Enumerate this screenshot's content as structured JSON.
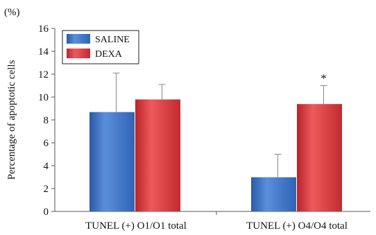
{
  "chart_data": {
    "type": "bar",
    "unit_label": "(%)",
    "ylabel": "Percentage of apoptotic cells",
    "xlabel": "",
    "ylim": [
      0,
      16
    ],
    "yticks": [
      "0",
      "2",
      "4",
      "6",
      "8",
      "10",
      "12",
      "14",
      "16"
    ],
    "categories": [
      "TUNEL (+) O1/O1 total",
      "TUNEL (+) O4/O4 total"
    ],
    "series": [
      {
        "name": "SALINE",
        "color": "#3f74c6",
        "values": [
          8.7,
          3.0
        ],
        "error": [
          3.4,
          2.0
        ]
      },
      {
        "name": "DEXA",
        "color": "#d8373a",
        "values": [
          9.8,
          9.4
        ],
        "error": [
          1.3,
          1.6
        ]
      }
    ],
    "annotations": [
      {
        "category_index": 1,
        "series_index": 1,
        "text": "*"
      }
    ],
    "legend": {
      "position": "top-left"
    },
    "grid": false
  }
}
